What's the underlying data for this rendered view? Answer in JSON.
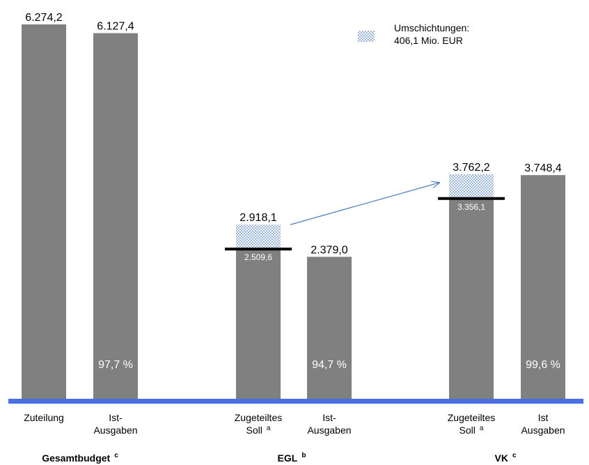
{
  "chart_data": {
    "type": "bar",
    "unit": "Mio. EUR",
    "colors": {
      "bar": "#808080",
      "baseline": "#4a6fe0",
      "arrow": "#4f81bd",
      "hatch": "#9db6d8"
    },
    "legend": {
      "label_line1": "Umschichtungen:",
      "label_line2": "406,1 Mio. EUR",
      "position": "top-right"
    },
    "groups": [
      {
        "label": "Gesamtbudget",
        "sup": "c",
        "bars": [
          {
            "cat_lines": [
              "Zuteilung"
            ],
            "sup": "",
            "value": 6274.2,
            "label": "6.274,2",
            "pct": "",
            "base": null,
            "base_label": "",
            "soll_line": false
          },
          {
            "cat_lines": [
              "Ist-",
              "Ausgaben"
            ],
            "sup": "",
            "value": 6127.4,
            "label": "6.127,4",
            "pct": "97,7 %",
            "base": null,
            "base_label": "",
            "soll_line": false
          }
        ]
      },
      {
        "label": "EGL",
        "sup": "b",
        "bars": [
          {
            "cat_lines": [
              "Zugeteiltes",
              "Soll"
            ],
            "sup": "a",
            "value": 2918.1,
            "label": "2.918,1",
            "pct": "",
            "base": 2509.6,
            "base_label": "2.509,6",
            "soll_line": true
          },
          {
            "cat_lines": [
              "Ist-",
              "Ausgaben"
            ],
            "sup": "",
            "value": 2379.0,
            "label": "2.379,0",
            "pct": "94,7 %",
            "base": null,
            "base_label": "",
            "soll_line": false
          }
        ]
      },
      {
        "label": "VK",
        "sup": "c",
        "bars": [
          {
            "cat_lines": [
              "Zugeteiltes",
              "Soll"
            ],
            "sup": "a",
            "value": 3762.2,
            "label": "3.762,2",
            "pct": "",
            "base": 3356.1,
            "base_label": "3.356,1",
            "soll_line": true
          },
          {
            "cat_lines": [
              "Ist",
              "Ausgaben"
            ],
            "sup": "",
            "value": 3748.4,
            "label": "3.748,4",
            "pct": "99,6 %",
            "base": null,
            "base_label": "",
            "soll_line": false
          }
        ]
      }
    ],
    "ylim": [
      0,
      6274.2
    ],
    "arrow": {
      "from_group": 1,
      "to_group": 2
    }
  }
}
